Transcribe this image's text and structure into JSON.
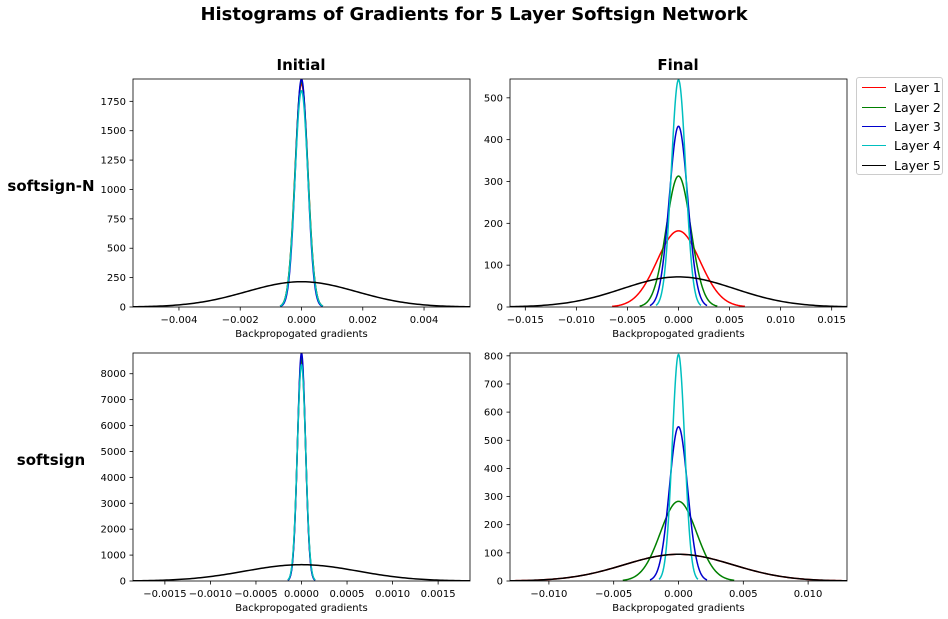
{
  "suptitle": "Histograms of Gradients for 5 Layer Softsign Network",
  "columns": [
    "Initial",
    "Final"
  ],
  "rows": [
    "softsign-N",
    "softsign"
  ],
  "colors": {
    "Layer 1": "#ff0000",
    "Layer 2": "#008000",
    "Layer 3": "#0000cc",
    "Layer 4": "#00bfbf",
    "Layer 5": "#000000"
  },
  "legend": {
    "placement": "outside right",
    "entries": [
      "Layer 1",
      "Layer 2",
      "Layer 3",
      "Layer 4",
      "Layer 5"
    ]
  },
  "chart_data": [
    {
      "type": "line",
      "row": "softsign-N",
      "column": "Initial",
      "xlabel": "Backpropogated gradients",
      "xlim": [
        -0.0055,
        0.0055
      ],
      "ylim": [
        0,
        1940
      ],
      "xticks": [
        -0.004,
        -0.002,
        0.0,
        0.002,
        0.004
      ],
      "xtick_labels": [
        "−0.004",
        "−0.002",
        "0.000",
        "0.002",
        "0.004"
      ],
      "yticks": [
        0,
        250,
        500,
        750,
        1000,
        1250,
        1500,
        1750
      ],
      "ytick_labels": [
        "0",
        "250",
        "500",
        "750",
        "1000",
        "1250",
        "1500",
        "1750"
      ],
      "series": [
        {
          "name": "Layer 1",
          "peak_x": 0.0,
          "peak_y": 1900,
          "sigma": 0.00021,
          "x_range": [
            -0.0007,
            0.0007
          ]
        },
        {
          "name": "Layer 2",
          "peak_x": 0.0,
          "peak_y": 1920,
          "sigma": 0.00021,
          "x_range": [
            -0.0007,
            0.0007
          ]
        },
        {
          "name": "Layer 3",
          "peak_x": 0.0,
          "peak_y": 1940,
          "sigma": 0.0002,
          "x_range": [
            -0.0007,
            0.0007
          ]
        },
        {
          "name": "Layer 4",
          "peak_x": 0.0,
          "peak_y": 1840,
          "sigma": 0.00021,
          "x_range": [
            -0.0007,
            0.0007
          ]
        },
        {
          "name": "Layer 5",
          "peak_x": 0.0,
          "peak_y": 215,
          "sigma": 0.0018,
          "x_range": [
            -0.0055,
            0.0055
          ]
        }
      ]
    },
    {
      "type": "line",
      "row": "softsign-N",
      "column": "Final",
      "xlabel": "Backpropogated gradients",
      "xlim": [
        -0.0165,
        0.0165
      ],
      "ylim": [
        0,
        545
      ],
      "xticks": [
        -0.015,
        -0.01,
        -0.005,
        0.0,
        0.005,
        0.01,
        0.015
      ],
      "xtick_labels": [
        "−0.015",
        "−0.010",
        "−0.005",
        "0.000",
        "0.005",
        "0.010",
        "0.015"
      ],
      "yticks": [
        0,
        100,
        200,
        300,
        400,
        500
      ],
      "ytick_labels": [
        "0",
        "100",
        "200",
        "300",
        "400",
        "500"
      ],
      "series": [
        {
          "name": "Layer 1",
          "peak_x": 0.0,
          "peak_y": 182,
          "sigma": 0.0021,
          "x_range": [
            -0.0065,
            0.0065
          ]
        },
        {
          "name": "Layer 2",
          "peak_x": 0.0,
          "peak_y": 313,
          "sigma": 0.0012,
          "x_range": [
            -0.0038,
            0.0038
          ]
        },
        {
          "name": "Layer 3",
          "peak_x": 0.0,
          "peak_y": 432,
          "sigma": 0.0009,
          "x_range": [
            -0.0028,
            0.0028
          ]
        },
        {
          "name": "Layer 4",
          "peak_x": 0.0,
          "peak_y": 543,
          "sigma": 0.0007,
          "x_range": [
            -0.0022,
            0.0022
          ]
        },
        {
          "name": "Layer 5",
          "peak_x": 0.0,
          "peak_y": 72,
          "sigma": 0.0055,
          "x_range": [
            -0.0165,
            0.0165
          ]
        }
      ]
    },
    {
      "type": "line",
      "row": "softsign",
      "column": "Initial",
      "xlabel": "Backpropogated gradients",
      "xlim": [
        -0.00185,
        0.00185
      ],
      "ylim": [
        0,
        8800
      ],
      "xticks": [
        -0.0015,
        -0.001,
        -0.0005,
        0.0,
        0.0005,
        0.001,
        0.0015
      ],
      "xtick_labels": [
        "−0.0015",
        "−0.0010",
        "−0.0005",
        "0.0000",
        "0.0005",
        "0.0010",
        "0.0015"
      ],
      "yticks": [
        0,
        1000,
        2000,
        3000,
        4000,
        5000,
        6000,
        7000,
        8000
      ],
      "ytick_labels": [
        "0",
        "1000",
        "2000",
        "3000",
        "4000",
        "5000",
        "6000",
        "7000",
        "8000"
      ],
      "series": [
        {
          "name": "Layer 1",
          "peak_x": 0.0,
          "peak_y": 8500,
          "sigma": 4.5e-05,
          "x_range": [
            -0.00015,
            0.00015
          ]
        },
        {
          "name": "Layer 2",
          "peak_x": 0.0,
          "peak_y": 8600,
          "sigma": 4.5e-05,
          "x_range": [
            -0.00015,
            0.00015
          ]
        },
        {
          "name": "Layer 3",
          "peak_x": 0.0,
          "peak_y": 8800,
          "sigma": 4.4e-05,
          "x_range": [
            -0.00015,
            0.00015
          ]
        },
        {
          "name": "Layer 4",
          "peak_x": 0.0,
          "peak_y": 8350,
          "sigma": 4.6e-05,
          "x_range": [
            -0.00015,
            0.00015
          ]
        },
        {
          "name": "Layer 5",
          "peak_x": 0.0,
          "peak_y": 630,
          "sigma": 0.00062,
          "x_range": [
            -0.00185,
            0.00185
          ]
        }
      ]
    },
    {
      "type": "line",
      "row": "softsign",
      "column": "Final",
      "xlabel": "Backpropogated gradients",
      "xlim": [
        -0.013,
        0.013
      ],
      "ylim": [
        0,
        810
      ],
      "xticks": [
        -0.01,
        -0.005,
        0.0,
        0.005,
        0.01
      ],
      "xtick_labels": [
        "−0.010",
        "−0.005",
        "0.000",
        "0.005",
        "0.010"
      ],
      "yticks": [
        0,
        100,
        200,
        300,
        400,
        500,
        600,
        700,
        800
      ],
      "ytick_labels": [
        "0",
        "100",
        "200",
        "300",
        "400",
        "500",
        "600",
        "700",
        "800"
      ],
      "series": [
        {
          "name": "Layer 1",
          "peak_x": 0.0,
          "peak_y": 95,
          "sigma": 0.0042,
          "x_range": [
            -0.013,
            0.013
          ]
        },
        {
          "name": "Layer 2",
          "peak_x": 0.0,
          "peak_y": 283,
          "sigma": 0.0014,
          "x_range": [
            -0.0043,
            0.0043
          ]
        },
        {
          "name": "Layer 3",
          "peak_x": 0.0,
          "peak_y": 548,
          "sigma": 0.0007,
          "x_range": [
            -0.0022,
            0.0022
          ]
        },
        {
          "name": "Layer 4",
          "peak_x": 0.0,
          "peak_y": 805,
          "sigma": 0.00048,
          "x_range": [
            -0.0015,
            0.0015
          ]
        },
        {
          "name": "Layer 5",
          "peak_x": 0.0,
          "peak_y": 95,
          "sigma": 0.0042,
          "x_range": [
            -0.013,
            0.013
          ]
        }
      ]
    }
  ]
}
